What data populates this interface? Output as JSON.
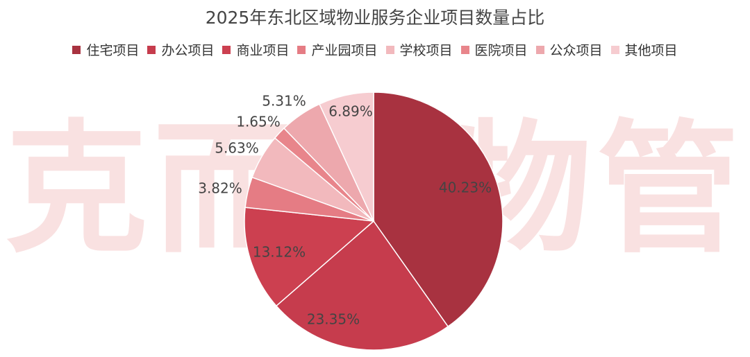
{
  "watermark": "克而瑞物管",
  "chart_data": {
    "type": "pie",
    "title": "2025年东北区域物业服务企业项目数量占比",
    "slices": [
      {
        "label": "住宅项目",
        "value": 40.23,
        "display": "40.23%",
        "color": "#a83240"
      },
      {
        "label": "办公项目",
        "value": 23.35,
        "display": "23.35%",
        "color": "#c63c4d"
      },
      {
        "label": "商业项目",
        "value": 13.12,
        "display": "13.12%",
        "color": "#cc4050"
      },
      {
        "label": "产业园项目",
        "value": 3.82,
        "display": "3.82%",
        "color": "#e57c84"
      },
      {
        "label": "学校项目",
        "value": 5.63,
        "display": "5.63%",
        "color": "#f2b9bd"
      },
      {
        "label": "医院项目",
        "value": 1.65,
        "display": "1.65%",
        "color": "#e8858b"
      },
      {
        "label": "公众项目",
        "value": 5.31,
        "display": "5.31%",
        "color": "#eda8ad"
      },
      {
        "label": "其他项目",
        "value": 6.89,
        "display": "6.89%",
        "color": "#f6ccd0"
      }
    ],
    "legend_position": "top"
  }
}
